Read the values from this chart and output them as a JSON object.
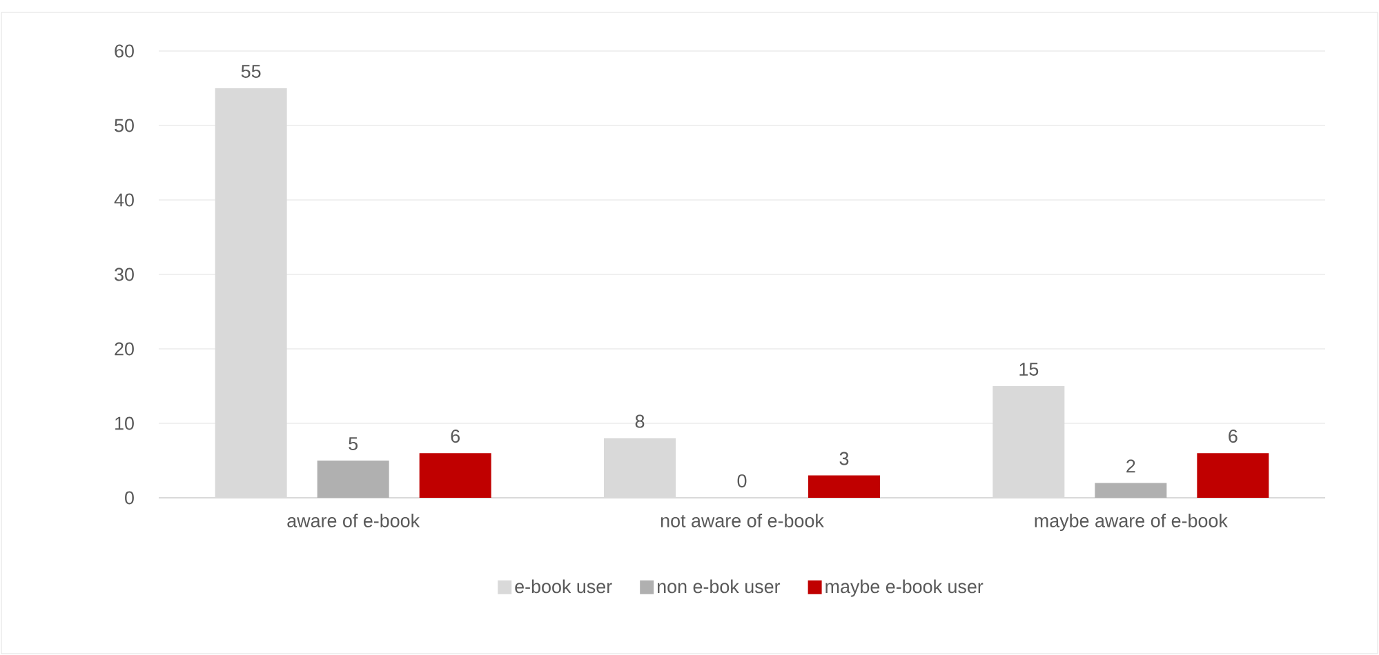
{
  "chart_data": {
    "type": "bar",
    "categories": [
      "aware of e-book",
      "not aware of e-book",
      "maybe aware of e-book"
    ],
    "series": [
      {
        "name": "e-book user",
        "color": "#d9d9d9",
        "values": [
          55,
          8,
          15
        ]
      },
      {
        "name": "non e-bok user",
        "color": "#b0b0b0",
        "values": [
          5,
          0,
          2
        ]
      },
      {
        "name": "maybe e-book user",
        "color": "#c00000",
        "values": [
          6,
          3,
          6
        ]
      }
    ],
    "ylim": [
      0,
      60
    ],
    "yticks": [
      0,
      10,
      20,
      30,
      40,
      50,
      60
    ],
    "grid": "y",
    "legend": "bottom",
    "data_labels": true
  }
}
